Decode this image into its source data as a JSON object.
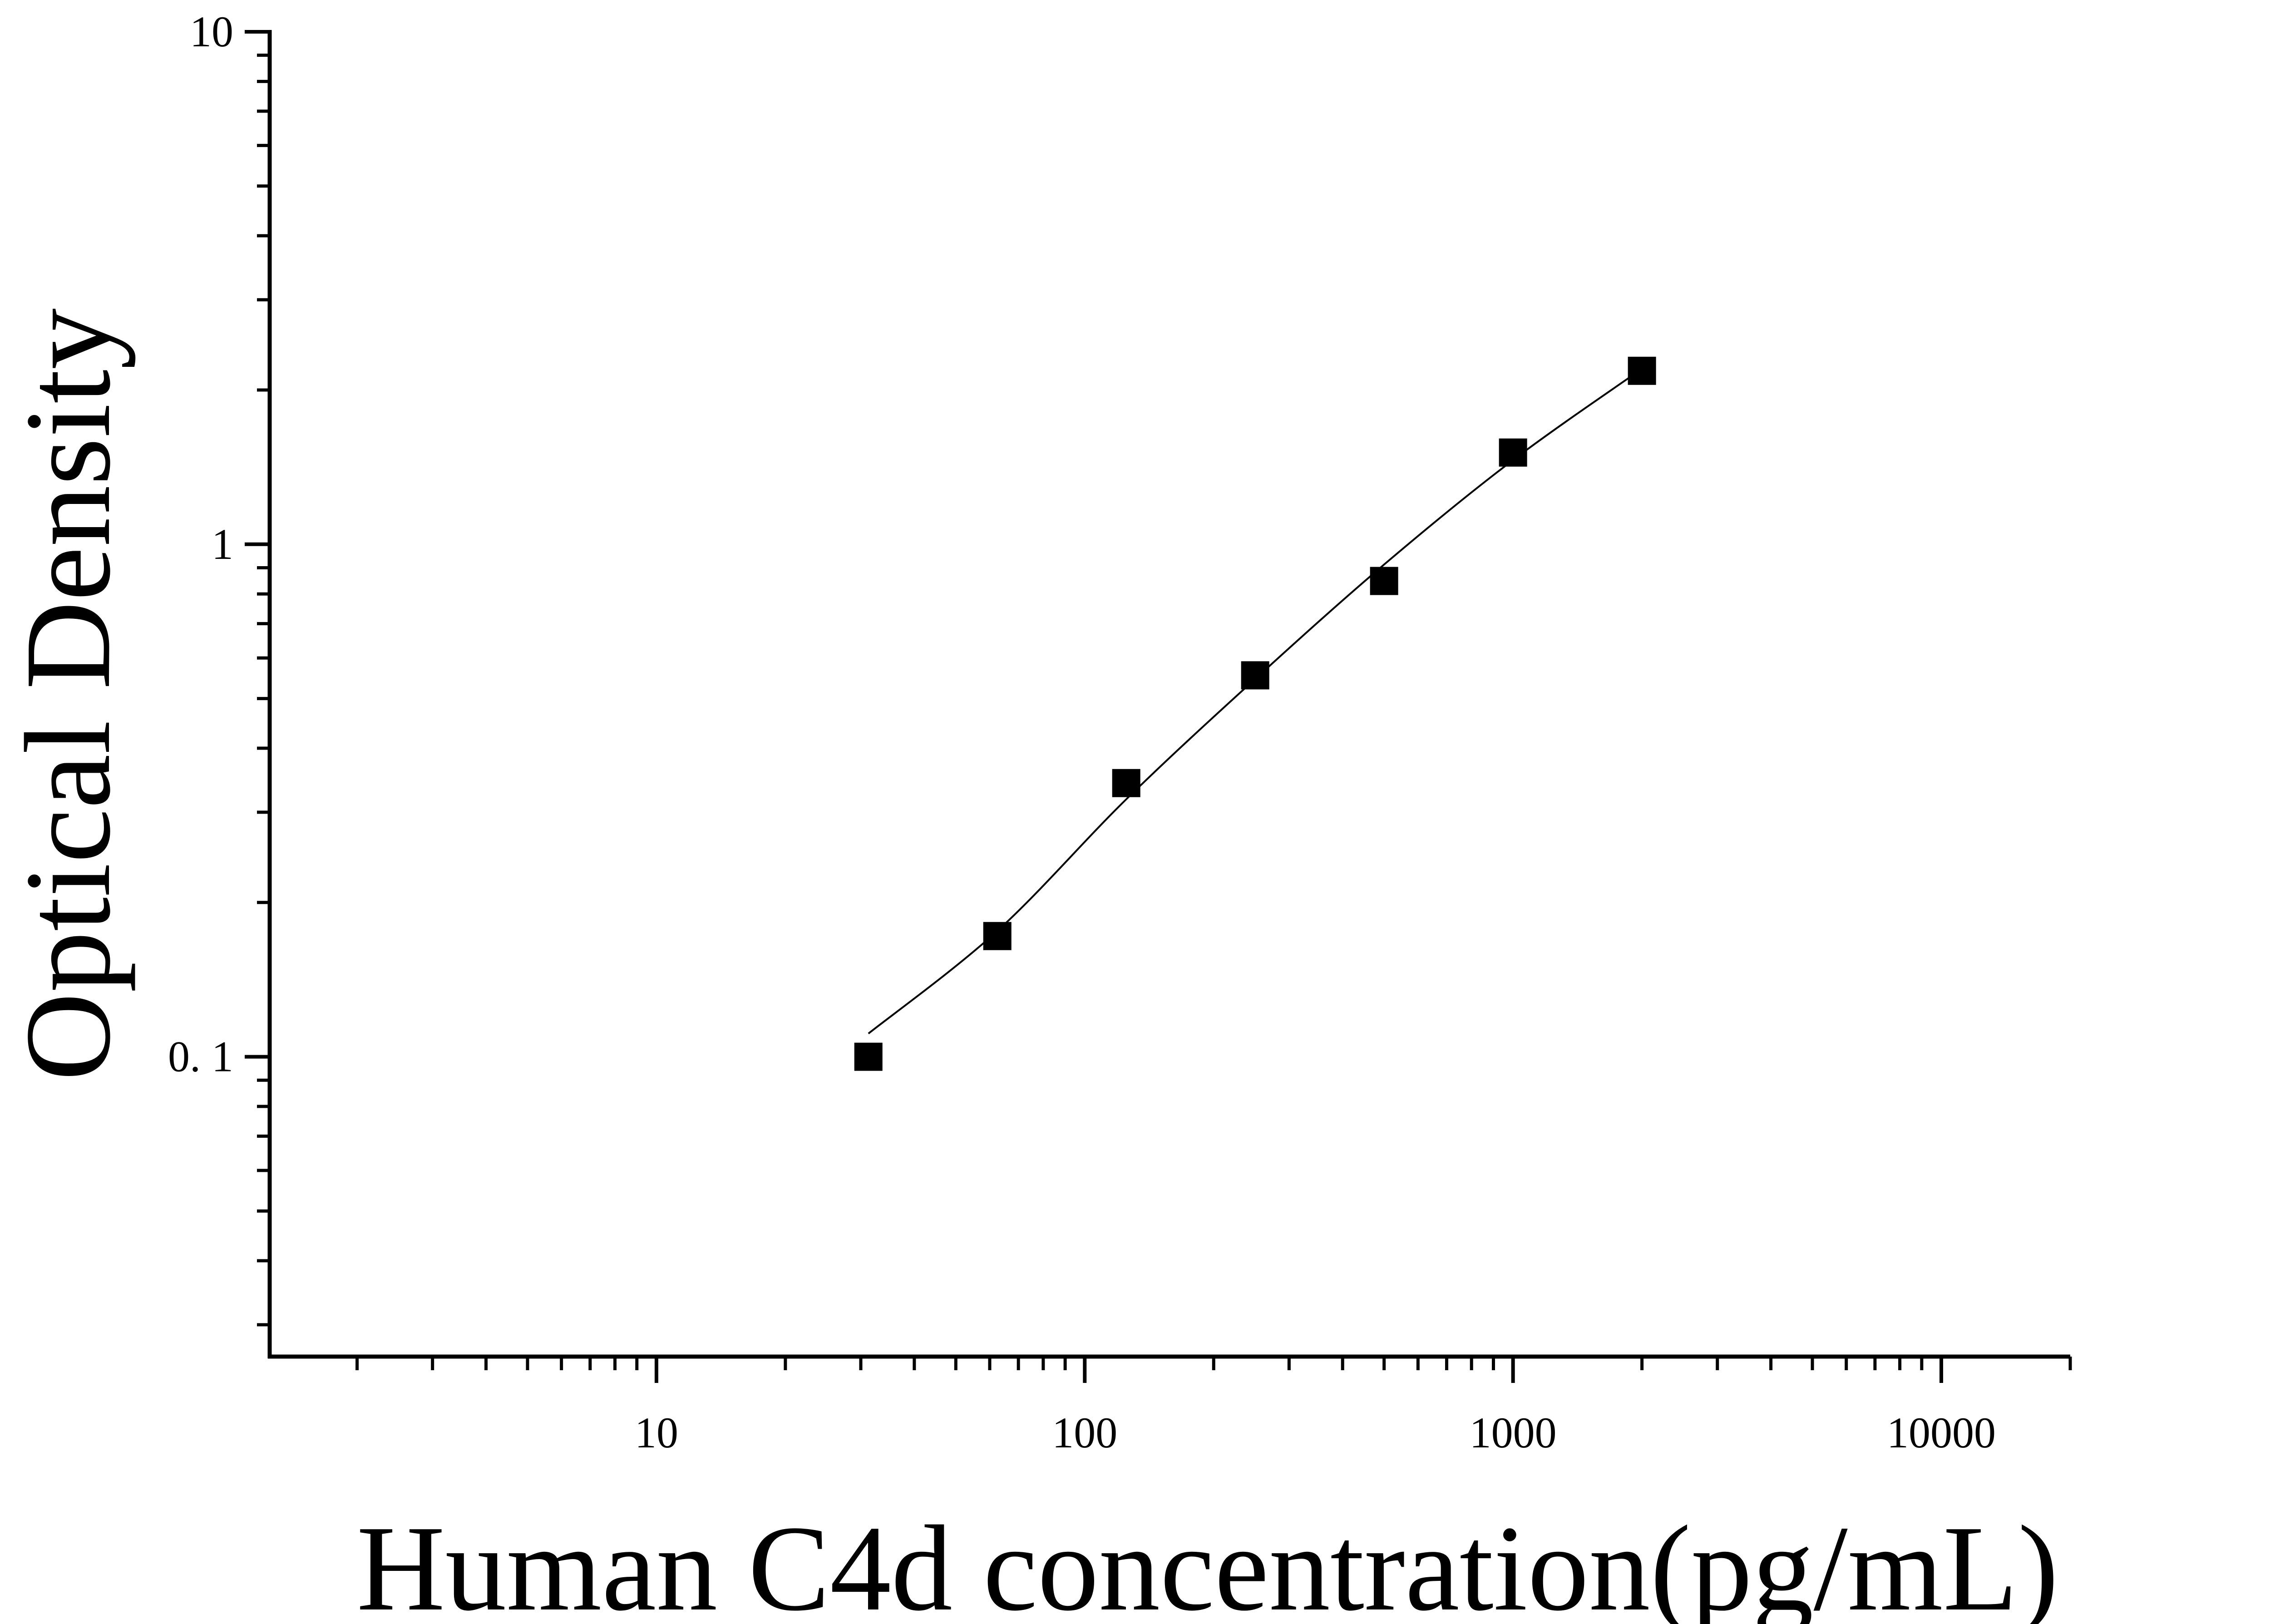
{
  "chart_data": {
    "type": "scatter",
    "xlabel": "Human C4d concentration(pg/mL)",
    "ylabel": "Optical Density",
    "x_scale": "log",
    "y_scale": "log",
    "xlim": [
      1.25,
      20000
    ],
    "ylim": [
      0.026,
      10
    ],
    "x_ticks": [
      {
        "value": 10,
        "label": "10"
      },
      {
        "value": 100,
        "label": "100"
      },
      {
        "value": 1000,
        "label": "1000"
      },
      {
        "value": 10000,
        "label": "10000"
      }
    ],
    "y_ticks": [
      {
        "value": 0.1,
        "label": "0. 1"
      },
      {
        "value": 1,
        "label": "1"
      },
      {
        "value": 10,
        "label": "10"
      }
    ],
    "grid": false,
    "legend": "none",
    "series": [
      {
        "marker": "square",
        "color": "#000000",
        "x": [
          31.25,
          62.5,
          125,
          250,
          500,
          1000,
          2000
        ],
        "y": [
          0.1,
          0.172,
          0.342,
          0.555,
          0.848,
          1.51,
          2.18
        ]
      }
    ],
    "fit_curve": {
      "color": "#000000",
      "x": [
        31.25,
        62.5,
        125,
        250,
        500,
        1000,
        2000
      ],
      "y": [
        0.111,
        0.176,
        0.318,
        0.546,
        0.913,
        1.46,
        2.2
      ]
    }
  }
}
